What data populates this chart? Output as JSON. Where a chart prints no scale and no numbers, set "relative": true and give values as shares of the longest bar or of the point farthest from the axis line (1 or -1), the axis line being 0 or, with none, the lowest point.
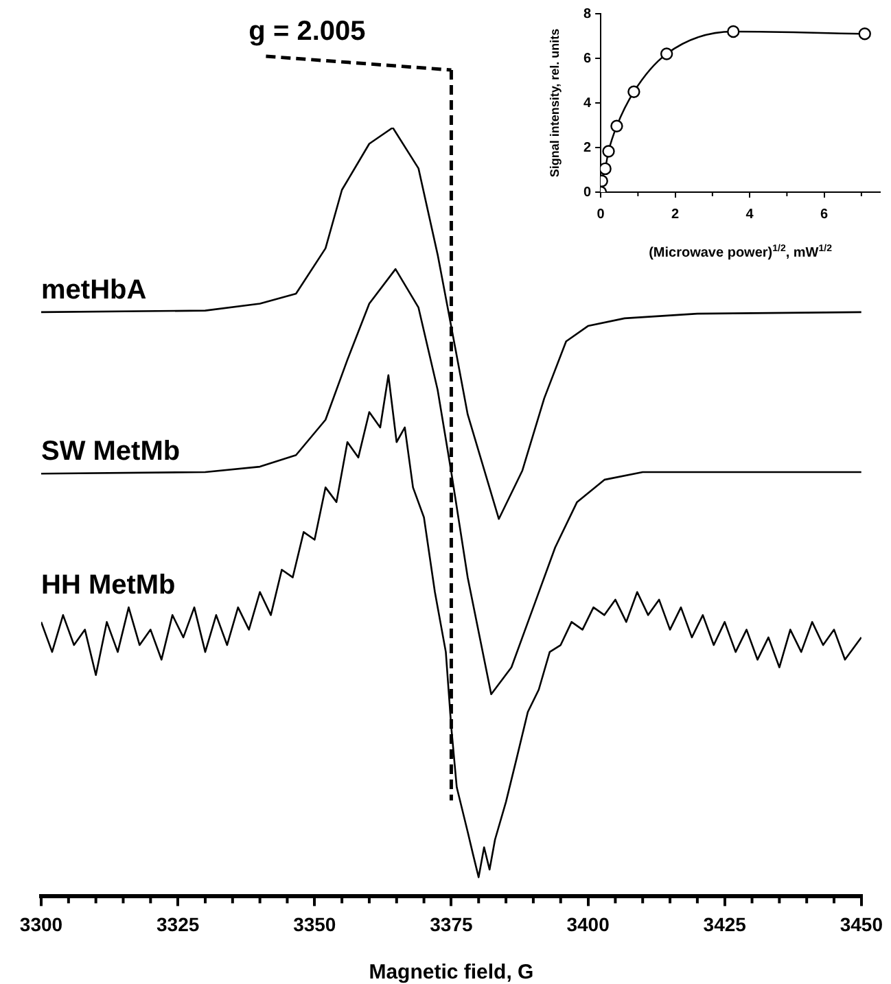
{
  "chart_data": [
    {
      "type": "line",
      "xlabel": "Magnetic field, G",
      "relative": true,
      "tick_labels": "x",
      "xlim": [
        3300,
        3450
      ],
      "xticks": [
        3300,
        {
          "value": 3305,
          "label": null
        },
        {
          "value": 3310,
          "label": null
        },
        {
          "value": 3315,
          "label": null
        },
        {
          "value": 3320,
          "label": null
        },
        3325,
        {
          "value": 3330,
          "label": null
        },
        {
          "value": 3335,
          "label": null
        },
        {
          "value": 3340,
          "label": null
        },
        {
          "value": 3345,
          "label": null
        },
        3350,
        {
          "value": 3355,
          "label": null
        },
        {
          "value": 3360,
          "label": null
        },
        {
          "value": 3365,
          "label": null
        },
        {
          "value": 3370,
          "label": null
        },
        3375,
        {
          "value": 3380,
          "label": null
        },
        {
          "value": 3385,
          "label": null
        },
        {
          "value": 3390,
          "label": null
        },
        {
          "value": 3395,
          "label": null
        },
        3400,
        {
          "value": 3405,
          "label": null
        },
        {
          "value": 3410,
          "label": null
        },
        {
          "value": 3415,
          "label": null
        },
        {
          "value": 3420,
          "label": null
        },
        3425,
        {
          "value": 3430,
          "label": null
        },
        {
          "value": 3435,
          "label": null
        },
        {
          "value": 3440,
          "label": null
        },
        {
          "value": 3445,
          "label": null
        },
        3450
      ],
      "ref_lines": [
        {
          "axis": "x",
          "value": 3375,
          "line_style": "dashed",
          "color": "#000000"
        }
      ],
      "annotations": [
        "g = 2.005"
      ],
      "series": [
        {
          "name": "metHbA",
          "color": "#000000",
          "x": [
            3300,
            3330,
            3340,
            3346.6,
            3352,
            3355,
            3360,
            3364.3,
            3369,
            3372.5,
            3374.5,
            3378,
            3383.7,
            3388,
            3392,
            3396,
            3400,
            3406.7,
            3420,
            3450
          ],
          "values": [
            0.76,
            0.762,
            0.771,
            0.784,
            0.843,
            0.919,
            0.979,
            1,
            0.947,
            0.835,
            0.76,
            0.627,
            0.491,
            0.554,
            0.648,
            0.722,
            0.742,
            0.752,
            0.758,
            0.76
          ]
        },
        {
          "name": "SW MetMb",
          "color": "#000000",
          "x": [
            3300,
            3330,
            3340,
            3346.6,
            3352,
            3356,
            3360,
            3364.8,
            3369,
            3372.5,
            3375,
            3378,
            3382.3,
            3386,
            3390,
            3394,
            3398,
            3403,
            3410,
            3450
          ],
          "values": [
            0.55,
            0.552,
            0.559,
            0.574,
            0.62,
            0.698,
            0.771,
            0.816,
            0.766,
            0.659,
            0.552,
            0.415,
            0.263,
            0.298,
            0.376,
            0.454,
            0.513,
            0.542,
            0.552,
            0.552
          ]
        },
        {
          "name": "HH MetMb",
          "color": "#000000",
          "x": [
            3300,
            3302,
            3304,
            3306,
            3308,
            3310,
            3312,
            3314,
            3316,
            3318,
            3320,
            3322,
            3324,
            3326,
            3328,
            3330,
            3332,
            3334,
            3336,
            3338,
            3340,
            3342,
            3344,
            3346,
            3348,
            3350,
            3352,
            3354,
            3356,
            3358,
            3360,
            3362,
            3363.5,
            3365,
            3366.5,
            3368,
            3370,
            3372,
            3374,
            3375,
            3376,
            3378,
            3379,
            3380,
            3381,
            3382,
            3383,
            3385,
            3387,
            3389,
            3391,
            3393,
            3395,
            3397,
            3399,
            3401,
            3403,
            3405,
            3407,
            3409,
            3411,
            3413,
            3415,
            3417,
            3419,
            3421,
            3423,
            3425,
            3427,
            3429,
            3431,
            3433,
            3435,
            3437,
            3439,
            3441,
            3443,
            3445,
            3447,
            3450
          ],
          "values": [
            0.357,
            0.318,
            0.366,
            0.327,
            0.347,
            0.288,
            0.357,
            0.318,
            0.376,
            0.327,
            0.347,
            0.308,
            0.366,
            0.337,
            0.376,
            0.318,
            0.366,
            0.327,
            0.376,
            0.347,
            0.396,
            0.366,
            0.425,
            0.415,
            0.474,
            0.464,
            0.532,
            0.513,
            0.591,
            0.571,
            0.63,
            0.61,
            0.678,
            0.591,
            0.61,
            0.532,
            0.493,
            0.396,
            0.318,
            0.22,
            0.142,
            0.084,
            0.054,
            0.025,
            0.064,
            0.035,
            0.074,
            0.123,
            0.181,
            0.24,
            0.269,
            0.318,
            0.327,
            0.357,
            0.347,
            0.376,
            0.366,
            0.386,
            0.357,
            0.396,
            0.366,
            0.386,
            0.347,
            0.376,
            0.337,
            0.366,
            0.327,
            0.357,
            0.318,
            0.347,
            0.308,
            0.337,
            0.298,
            0.347,
            0.318,
            0.357,
            0.327,
            0.347,
            0.308,
            0.337
          ]
        }
      ]
    },
    {
      "type": "line",
      "xlabel": "(Microwave power)$^{1/2}$, mW$^{1/2}$",
      "ylabel": "Signal intensity, rel. units",
      "marker": "circle",
      "color": "#000000",
      "xlim": [
        0,
        7.5
      ],
      "xticks": [
        0,
        {
          "value": 1,
          "label": null
        },
        2,
        {
          "value": 3,
          "label": null
        },
        4,
        {
          "value": 5,
          "label": null
        },
        6,
        {
          "value": 7,
          "label": null
        }
      ],
      "ylim": [
        0,
        8
      ],
      "yticks": [
        0,
        2,
        4,
        6,
        8
      ],
      "x": [
        0,
        0.03,
        0.12,
        0.21,
        0.43,
        0.89,
        1.77,
        3.56,
        7.09
      ],
      "values": [
        0,
        0.5,
        1.05,
        1.83,
        2.96,
        4.5,
        6.2,
        7.2,
        7.1
      ]
    }
  ]
}
